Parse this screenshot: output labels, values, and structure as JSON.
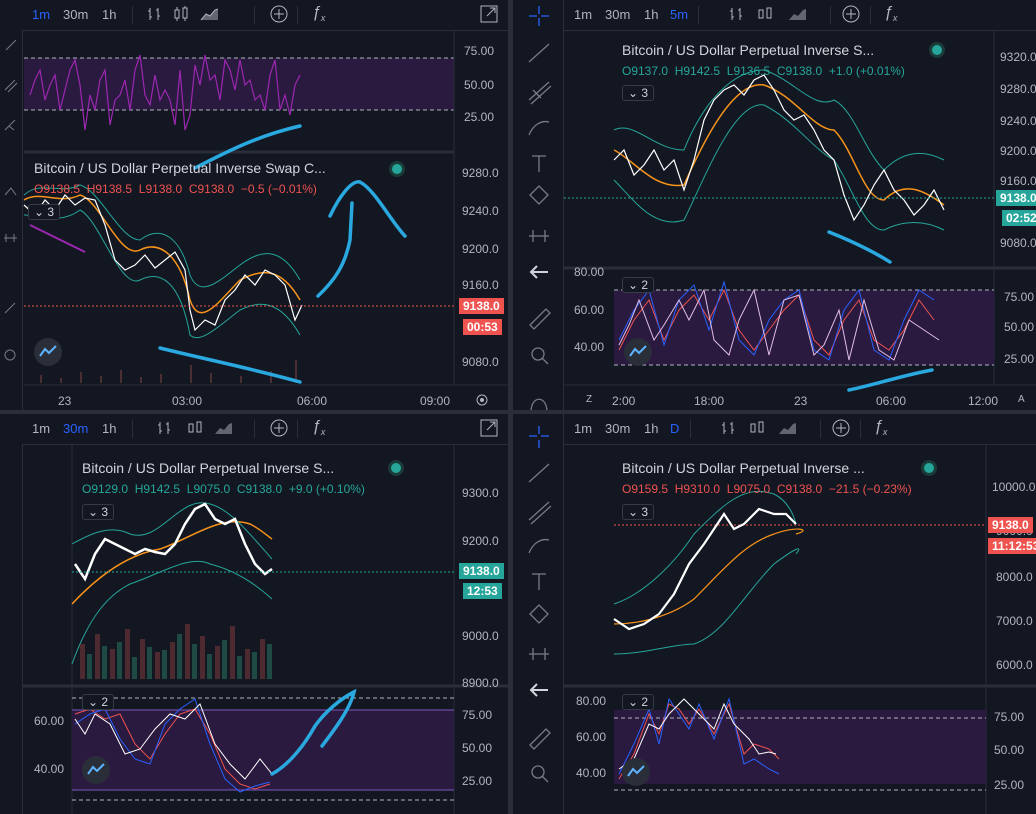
{
  "colors": {
    "up": "#26a69a",
    "down": "#ef5350",
    "accent": "#2962ff",
    "orange": "#f7931a",
    "purple": "#9c27b0",
    "annot": "#2aa8e0"
  },
  "tl": {
    "toolbar": {
      "tf1": "1m",
      "tf2": "30m",
      "tf3": "1h",
      "active": "1m"
    },
    "rsi_axis": [
      "75.00",
      "50.00",
      "25.00"
    ],
    "title": "Bitcoin / US Dollar Perpetual Inverse Swap C...",
    "ohlc": {
      "o": "O9138.5",
      "h": "H9138.5",
      "l": "L9138.0",
      "c": "C9138.0",
      "chg": "−0.5 (−0.01%)"
    },
    "ind": "3",
    "price_axis": [
      "9280.0",
      "9240.0",
      "9200.0",
      "9160.0",
      "9080.0"
    ],
    "last_price": "9138.0",
    "countdown": "00:53",
    "time_axis": [
      "23",
      "03:00",
      "06:00",
      "09:00"
    ]
  },
  "tr": {
    "toolbar": {
      "tf1": "1m",
      "tf2": "30m",
      "tf3": "1h",
      "tf4": "5m",
      "active": "5m"
    },
    "title": "Bitcoin / US Dollar Perpetual Inverse S...",
    "ohlc": {
      "o": "O9137.0",
      "h": "H9142.5",
      "l": "L9136.5",
      "c": "C9138.0",
      "chg": "+1.0 (+0.01%)"
    },
    "ind": "3",
    "price_axis": [
      "9320.0",
      "9280.0",
      "9240.0",
      "9200.0",
      "9160.0",
      "9080.0"
    ],
    "last_price": "9138.0",
    "countdown": "02:52",
    "ind2": "2",
    "osc_left_axis": [
      "80.00",
      "60.00",
      "40.00"
    ],
    "osc_right_axis": [
      "75.00",
      "50.00",
      "25.00"
    ],
    "time_axis": [
      "2:00",
      "18:00",
      "23",
      "06:00",
      "12:00"
    ],
    "z_label": "Z",
    "a_label": "A"
  },
  "bl": {
    "toolbar": {
      "tf1": "1m",
      "tf2": "30m",
      "tf3": "1h",
      "active": "30m"
    },
    "title": "Bitcoin / US Dollar Perpetual Inverse S...",
    "ohlc": {
      "o": "O9129.0",
      "h": "H9142.5",
      "l": "L9075.0",
      "c": "C9138.0",
      "chg": "+9.0 (+0.10%)"
    },
    "ind": "3",
    "price_axis": [
      "9300.0",
      "9200.0",
      "9000.0",
      "8900.0"
    ],
    "last_price": "9138.0",
    "countdown": "12:53",
    "ind2": "2",
    "osc_left_axis": [
      "60.00",
      "40.00"
    ],
    "osc_right_axis": [
      "75.00",
      "50.00",
      "25.00"
    ]
  },
  "br": {
    "toolbar": {
      "tf1": "1m",
      "tf2": "30m",
      "tf3": "1h",
      "tf4": "D",
      "active": "D"
    },
    "title": "Bitcoin / US Dollar Perpetual Inverse ...",
    "ohlc": {
      "o": "O9159.5",
      "h": "H9310.0",
      "l": "L9075.0",
      "c": "C9138.0",
      "chg": "−21.5 (−0.23%)"
    },
    "ind": "3",
    "price_axis": [
      "10000.0",
      "9000.0",
      "8000.0",
      "7000.0",
      "6000.0"
    ],
    "last_price": "9138.0",
    "countdown": "11:12:53",
    "ind2": "2",
    "osc_left_axis": [
      "80.00",
      "60.00",
      "40.00"
    ],
    "osc_right_axis": [
      "75.00",
      "50.00",
      "25.00"
    ]
  },
  "icons": [
    "bar-style-icon",
    "candles-icon",
    "area-icon",
    "compare-icon",
    "fx-icon",
    "fullscreen-icon",
    "crosshair-icon",
    "trendline-icon",
    "pitchfork-icon",
    "brush-icon",
    "text-icon",
    "pattern-icon",
    "measure-icon",
    "back-arrow-icon",
    "ruler-icon",
    "zoom-icon",
    "magnet-icon"
  ]
}
